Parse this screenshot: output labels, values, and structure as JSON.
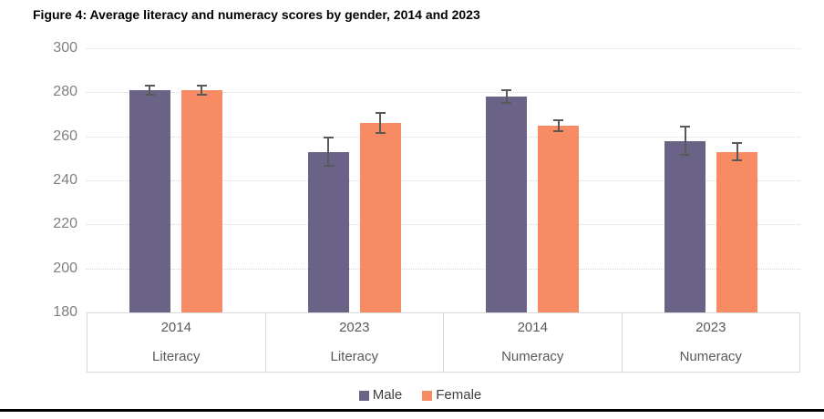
{
  "title": "Figure 4: Average literacy and numeracy scores by gender, 2014 and 2023",
  "colors": {
    "male": "#6b6387",
    "female": "#f78b63",
    "error_bar": "#595959",
    "gridline": "#d6d6d6",
    "ytick_label": "#7f7f7f",
    "category_label": "#595959",
    "legend_text": "#404040",
    "bottom_rule": "#000000"
  },
  "chart_data": {
    "type": "bar",
    "title": "Figure 4: Average literacy and numeracy scores by gender, 2014 and 2023",
    "categories": [
      {
        "year": "2014",
        "subject": "Literacy"
      },
      {
        "year": "2023",
        "subject": "Literacy"
      },
      {
        "year": "2014",
        "subject": "Numeracy"
      },
      {
        "year": "2023",
        "subject": "Numeracy"
      }
    ],
    "series": [
      {
        "name": "Male",
        "color": "#6b6387",
        "values": [
          281,
          253,
          278,
          258
        ],
        "error_plus_minus": [
          2,
          6.5,
          3,
          6.5
        ]
      },
      {
        "name": "Female",
        "color": "#f78b63",
        "values": [
          281,
          266,
          265,
          253
        ],
        "error_plus_minus": [
          2,
          4.5,
          2.5,
          4
        ]
      }
    ],
    "ylim": [
      180,
      300
    ],
    "ytick_step": 20,
    "ytick_labels": [
      "180",
      "200",
      "220",
      "240",
      "260",
      "280",
      "300"
    ],
    "grid": true,
    "error_bars": true,
    "legend_position": "bottom"
  },
  "legend": {
    "items": [
      {
        "label": "Male",
        "color": "#6b6387"
      },
      {
        "label": "Female",
        "color": "#f78b63"
      }
    ]
  }
}
